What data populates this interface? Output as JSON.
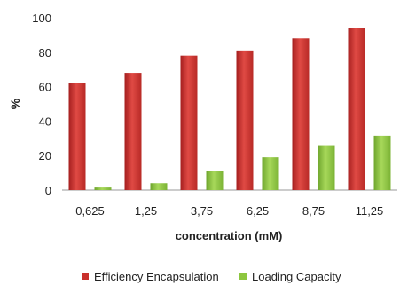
{
  "chart_data": {
    "type": "bar",
    "categories": [
      "0,625",
      "1,25",
      "3,75",
      "6,25",
      "8,75",
      "11,25"
    ],
    "series": [
      {
        "name": "Efficiency Encapsulation",
        "color": "#c9302c",
        "values": [
          62,
          68,
          78,
          81,
          88,
          94
        ]
      },
      {
        "name": "Loading Capacity",
        "color": "#8dc63f",
        "values": [
          1.5,
          4,
          11,
          19,
          26,
          31.5
        ]
      }
    ],
    "title": "",
    "xlabel": "concentration (mM)",
    "ylabel": "%",
    "ylim": [
      0,
      100
    ],
    "yticks": [
      0,
      20,
      40,
      60,
      80,
      100
    ],
    "grid": false,
    "legend_position": "bottom"
  }
}
